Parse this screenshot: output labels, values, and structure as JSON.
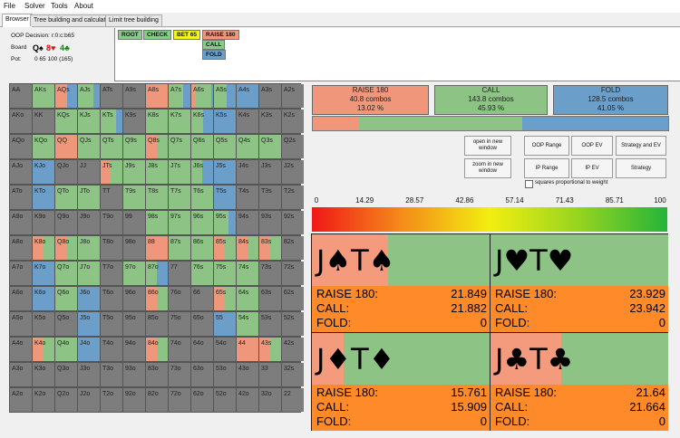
{
  "menu": [
    "File",
    "Solver",
    "Tools",
    "About"
  ],
  "tabs": [
    "Browser",
    "Tree building and calculation",
    "Limit tree building"
  ],
  "info": {
    "decision": "OOP Decision: r:0:c:b65",
    "board_label": "Board",
    "board_cards": [
      {
        "text": "Q♠",
        "color": "#000000"
      },
      {
        "text": "8♥",
        "color": "#d41010"
      },
      {
        "text": "4♣",
        "color": "#0a8a0a"
      }
    ],
    "pot_label": "Pot:",
    "pot_value": "0 65 100 (165)"
  },
  "tree_nodes": [
    {
      "label": "ROOT",
      "color": "#86cc86"
    },
    {
      "label": "CHECK",
      "color": "#86cc86"
    },
    {
      "label": "BET 65",
      "color": "#f4f41c"
    },
    {
      "label": "RAISE 180",
      "color": "#f0967a"
    },
    {
      "label": "CALL",
      "color": "#86cc86"
    },
    {
      "label": "FOLD",
      "color": "#6aa0cc"
    }
  ],
  "colors": {
    "raise": "#f0967a",
    "call": "#8dc385",
    "fold": "#6b9ec8",
    "empty": "#7d7d7d",
    "combo_bg": "#ff8a2a"
  },
  "grid": [
    [
      "AA",
      "AKs",
      "AQs",
      "AJs",
      "ATs",
      "A9s",
      "A8s",
      "A7s",
      "A6s",
      "A5s",
      "A4s",
      "A3s",
      "A2s"
    ],
    [
      "AKo",
      "KK",
      "KQs",
      "KJs",
      "KTs",
      "K9s",
      "K8s",
      "K7s",
      "K6s",
      "K5s",
      "K4s",
      "K3s",
      "K2s"
    ],
    [
      "AQo",
      "KQo",
      "QQ",
      "QJs",
      "QTs",
      "Q9s",
      "Q8s",
      "Q7s",
      "Q6s",
      "Q5s",
      "Q4s",
      "Q3s",
      "Q2s"
    ],
    [
      "AJo",
      "KJo",
      "QJo",
      "JJ",
      "JTs",
      "J9s",
      "J8s",
      "J7s",
      "J6s",
      "J5s",
      "J4s",
      "J3s",
      "J2s"
    ],
    [
      "ATo",
      "KTo",
      "QTo",
      "JTo",
      "TT",
      "T9s",
      "T8s",
      "T7s",
      "T6s",
      "T5s",
      "T4s",
      "T3s",
      "T2s"
    ],
    [
      "A9o",
      "K9o",
      "Q9o",
      "J9o",
      "T9o",
      "99",
      "98s",
      "97s",
      "96s",
      "95s",
      "94s",
      "93s",
      "92s"
    ],
    [
      "A8o",
      "K8o",
      "Q8o",
      "J8o",
      "T8o",
      "98o",
      "88",
      "87s",
      "86s",
      "85s",
      "84s",
      "83s",
      "82s"
    ],
    [
      "A7o",
      "K7o",
      "Q7o",
      "J7o",
      "T7o",
      "97o",
      "87o",
      "77",
      "76s",
      "75s",
      "74s",
      "73s",
      "72s"
    ],
    [
      "A6o",
      "K6o",
      "Q6o",
      "J6o",
      "T6o",
      "96o",
      "86o",
      "76o",
      "66",
      "65s",
      "64s",
      "63s",
      "62s"
    ],
    [
      "A5o",
      "K5o",
      "Q5o",
      "J5o",
      "T5o",
      "95o",
      "85o",
      "75o",
      "65o",
      "55",
      "54s",
      "53s",
      "52s"
    ],
    [
      "A4o",
      "K4o",
      "Q4o",
      "J4o",
      "T4o",
      "94o",
      "84o",
      "74o",
      "64o",
      "54o",
      "44",
      "43s",
      "42s"
    ],
    [
      "A3o",
      "K3o",
      "Q3o",
      "J3o",
      "T3o",
      "93o",
      "83o",
      "73o",
      "63o",
      "53o",
      "43o",
      "33",
      "32s"
    ],
    [
      "A2o",
      "K2o",
      "Q2o",
      "J2o",
      "T2o",
      "92o",
      "82o",
      "72o",
      "62o",
      "52o",
      "42o",
      "32o",
      "22"
    ]
  ],
  "grid_mix": {
    "AKs": [
      0,
      1,
      0
    ],
    "AQs": [
      0.55,
      0,
      0.45
    ],
    "AJs": [
      0,
      0.7,
      0.3
    ],
    "A8s": [
      1,
      0,
      0
    ],
    "A7s": [
      0,
      0.65,
      0.35
    ],
    "A6s": [
      0.2,
      0.7,
      0.1
    ],
    "A5s": [
      0,
      0.6,
      0.4
    ],
    "A4s": [
      0,
      0,
      1
    ],
    "KQs": [
      0,
      1,
      0
    ],
    "KJs": [
      0,
      1,
      0
    ],
    "KTs": [
      0,
      0.7,
      0.3
    ],
    "K8s": [
      0,
      1,
      0
    ],
    "K7s": [
      0,
      1,
      0
    ],
    "K6s": [
      0,
      0.55,
      0.45
    ],
    "K5s": [
      0,
      0,
      1
    ],
    "KQo": [
      0,
      1,
      0
    ],
    "QQ": [
      1,
      0,
      0
    ],
    "QJs": [
      0,
      1,
      0
    ],
    "QTs": [
      0,
      1,
      0
    ],
    "Q9s": [
      0,
      1,
      0
    ],
    "Q8s": [
      0.5,
      0.5,
      0
    ],
    "Q7s": [
      0,
      1,
      0
    ],
    "Q6s": [
      0,
      1,
      0
    ],
    "Q5s": [
      0,
      1,
      0
    ],
    "Q4s": [
      0,
      1,
      0
    ],
    "Q3s": [
      0,
      1,
      0
    ],
    "KJo": [
      0,
      0,
      1
    ],
    "JTs": [
      0.45,
      0.55,
      0
    ],
    "J9s": [
      0,
      1,
      0
    ],
    "J8s": [
      0,
      1,
      0
    ],
    "J7s": [
      0,
      1,
      0
    ],
    "J6s": [
      0,
      0.5,
      0.5
    ],
    "J5s": [
      0,
      0,
      1
    ],
    "KTo": [
      0,
      0,
      1
    ],
    "QTo": [
      0,
      1,
      0
    ],
    "JTo": [
      0,
      1,
      0
    ],
    "T9s": [
      0,
      1,
      0
    ],
    "T8s": [
      0,
      1,
      0
    ],
    "T7s": [
      0,
      1,
      0
    ],
    "T6s": [
      0,
      1,
      0
    ],
    "T5s": [
      0,
      0,
      1
    ],
    "98s": [
      0,
      1,
      0
    ],
    "97s": [
      0,
      1,
      0
    ],
    "96s": [
      0,
      1,
      0
    ],
    "95s": [
      0,
      0.65,
      0.35
    ],
    "K8o": [
      0.5,
      0.5,
      0
    ],
    "Q8o": [
      0.5,
      0.5,
      0
    ],
    "J8o": [
      0,
      1,
      0
    ],
    "88": [
      1,
      0,
      0
    ],
    "87s": [
      0,
      1,
      0
    ],
    "86s": [
      0,
      1,
      0
    ],
    "85s": [
      0.5,
      0.5,
      0
    ],
    "84s": [
      0.5,
      0.5,
      0
    ],
    "83s": [
      0.5,
      0.5,
      0
    ],
    "K7o": [
      0,
      0,
      1
    ],
    "Q7o": [
      0,
      1,
      0
    ],
    "J7o": [
      0,
      1,
      0
    ],
    "97o": [
      0,
      1,
      0
    ],
    "87o": [
      0,
      0.5,
      0.5
    ],
    "76s": [
      0,
      1,
      0
    ],
    "75s": [
      0,
      1,
      0
    ],
    "74s": [
      0,
      1,
      0
    ],
    "K6o": [
      0,
      0,
      1
    ],
    "Q6o": [
      0,
      1,
      0
    ],
    "J6o": [
      0,
      0,
      1
    ],
    "86o": [
      0.5,
      0.5,
      0
    ],
    "65s": [
      0.5,
      0.5,
      0
    ],
    "64s": [
      0,
      1,
      0
    ],
    "J5o": [
      0,
      0,
      1
    ],
    "55": [
      0,
      0,
      1
    ],
    "54s": [
      0,
      1,
      0
    ],
    "K4o": [
      0.5,
      0.5,
      0
    ],
    "Q4o": [
      0,
      1,
      0
    ],
    "J4o": [
      0,
      0,
      1
    ],
    "84o": [
      0.5,
      0.5,
      0
    ],
    "44": [
      1,
      0,
      0
    ],
    "43s": [
      0.5,
      0.5,
      0
    ],
    "A3o": [
      0,
      0,
      0
    ]
  },
  "summary": [
    {
      "name": "RAISE 180",
      "combos": "40.8 combos",
      "pct": "13.02 %",
      "color": "#f0967a"
    },
    {
      "name": "CALL",
      "combos": "143.8 combos",
      "pct": "45.93 %",
      "color": "#8dc385"
    },
    {
      "name": "FOLD",
      "combos": "128.5 combos",
      "pct": "41.05 %",
      "color": "#6b9ec8"
    }
  ],
  "freq_bar": {
    "raise": 0.1302,
    "call": 0.4593,
    "fold": 0.4105
  },
  "buttons": {
    "open_new_window": "open in new window",
    "zoom_new_window": "zoom in new window",
    "oop_range": "OOP Range",
    "oop_ev": "OOP EV",
    "strategy_and_ev": "Strategy and EV",
    "ip_range": "IP Range",
    "ip_ev": "IP EV",
    "strategy": "Strategy"
  },
  "squares_checkbox": "squares proportional to weight",
  "scale_labels": [
    "0",
    "14.29",
    "28.57",
    "42.86",
    "57.14",
    "71.43",
    "85.71",
    "100"
  ],
  "combos": [
    {
      "cards": [
        {
          "r": "J",
          "s": "♠",
          "c": "#000"
        },
        {
          "r": "T",
          "s": "♠",
          "c": "#000"
        }
      ],
      "raise_frac": 0.43,
      "lines": [
        {
          "k": "RAISE 180:",
          "v": "21.849"
        },
        {
          "k": "CALL:",
          "v": "21.882"
        },
        {
          "k": "FOLD:",
          "v": "0"
        }
      ]
    },
    {
      "cards": [
        {
          "r": "J",
          "s": "♥",
          "c": "#000"
        },
        {
          "r": "T",
          "s": "♥",
          "c": "#000"
        }
      ],
      "raise_frac": 0.0,
      "lines": [
        {
          "k": "RAISE 180:",
          "v": "23.929"
        },
        {
          "k": "CALL:",
          "v": "23.942"
        },
        {
          "k": "FOLD:",
          "v": "0"
        }
      ]
    },
    {
      "cards": [
        {
          "r": "J",
          "s": "♦",
          "c": "#000"
        },
        {
          "r": "T",
          "s": "♦",
          "c": "#000"
        }
      ],
      "raise_frac": 0.18,
      "lines": [
        {
          "k": "RAISE 180:",
          "v": "15.761"
        },
        {
          "k": "CALL:",
          "v": "15.909"
        },
        {
          "k": "FOLD:",
          "v": "0"
        }
      ]
    },
    {
      "cards": [
        {
          "r": "J",
          "s": "♣",
          "c": "#000"
        },
        {
          "r": "T",
          "s": "♣",
          "c": "#000"
        }
      ],
      "raise_frac": 0.4,
      "lines": [
        {
          "k": "RAISE 180:",
          "v": "21.64"
        },
        {
          "k": "CALL:",
          "v": "21.664"
        },
        {
          "k": "FOLD:",
          "v": "0"
        }
      ]
    }
  ]
}
